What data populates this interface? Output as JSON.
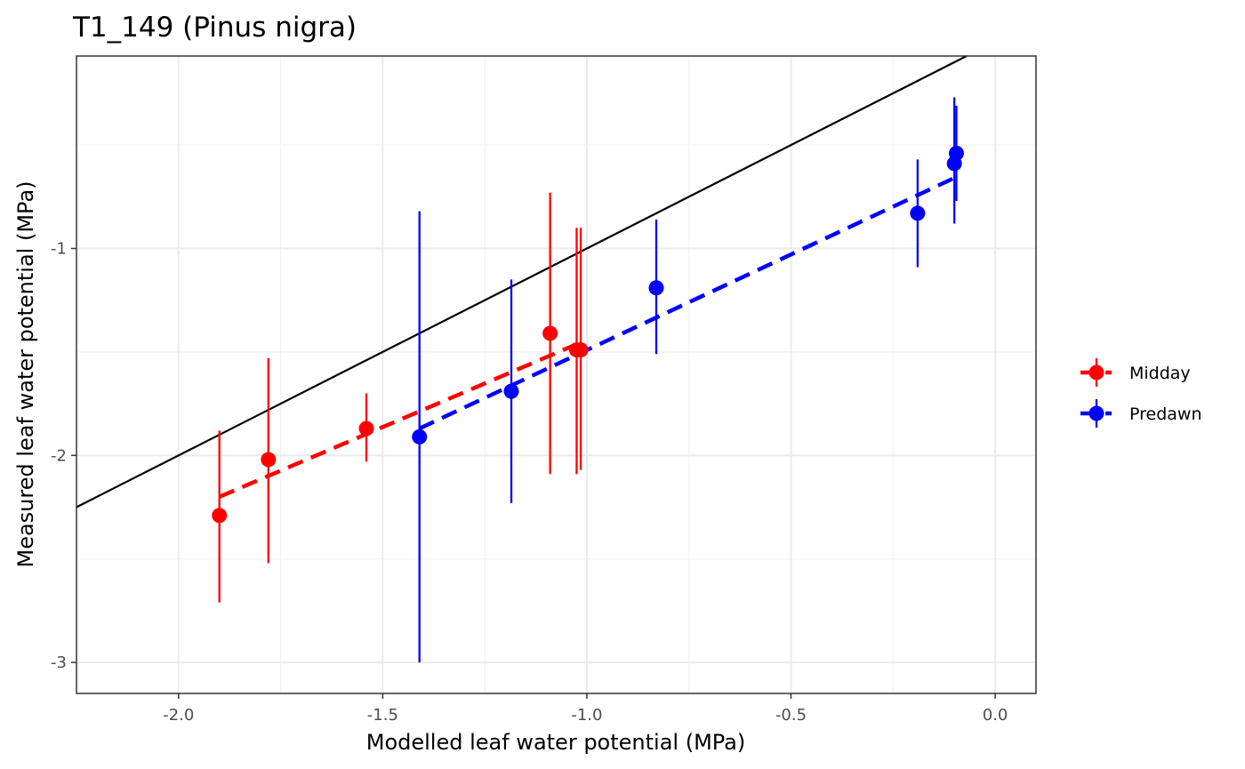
{
  "chart_data": {
    "type": "scatter",
    "title": "T1_149 (Pinus nigra)",
    "xlabel": "Modelled leaf water potential (MPa)",
    "ylabel": "Measured leaf water potential (MPa)",
    "xlim": [
      -2.25,
      0.1
    ],
    "ylim": [
      -3.15,
      -0.07
    ],
    "xticks": [
      -2.0,
      -1.5,
      -1.0,
      -0.5,
      0.0
    ],
    "xtick_labels": [
      "-2.0",
      "-1.5",
      "-1.0",
      "-0.5",
      "0.0"
    ],
    "yticks": [
      -1,
      -2,
      -3
    ],
    "ytick_labels": [
      "-1",
      "-2",
      "-3"
    ],
    "grid": true,
    "legend_position": "right",
    "identity_line": true,
    "series": [
      {
        "name": "Midday",
        "color": "#ff0000",
        "points": [
          {
            "x": -1.9,
            "y": -2.29,
            "ymin": -2.71,
            "ymax": -1.88
          },
          {
            "x": -1.78,
            "y": -2.02,
            "ymin": -2.52,
            "ymax": -1.53
          },
          {
            "x": -1.54,
            "y": -1.87,
            "ymin": -2.03,
            "ymax": -1.7
          },
          {
            "x": -1.09,
            "y": -1.41,
            "ymin": -2.09,
            "ymax": -0.73
          },
          {
            "x": -1.025,
            "y": -1.49,
            "ymin": -2.09,
            "ymax": -0.9
          },
          {
            "x": -1.015,
            "y": -1.49,
            "ymin": -2.07,
            "ymax": -0.9
          }
        ],
        "fit": {
          "x": [
            -1.9,
            -1.01
          ],
          "y": [
            -2.2,
            -1.45
          ]
        }
      },
      {
        "name": "Predawn",
        "color": "#0000ff",
        "points": [
          {
            "x": -1.41,
            "y": -1.91,
            "ymin": -3.0,
            "ymax": -0.82
          },
          {
            "x": -1.185,
            "y": -1.69,
            "ymin": -2.23,
            "ymax": -1.15
          },
          {
            "x": -0.83,
            "y": -1.19,
            "ymin": -1.51,
            "ymax": -0.86
          },
          {
            "x": -0.19,
            "y": -0.83,
            "ymin": -1.09,
            "ymax": -0.57
          },
          {
            "x": -0.1,
            "y": -0.59,
            "ymin": -0.88,
            "ymax": -0.27
          },
          {
            "x": -0.095,
            "y": -0.54,
            "ymin": -0.77,
            "ymax": -0.31
          }
        ],
        "fit": {
          "x": [
            -1.41,
            -0.09
          ],
          "y": [
            -1.87,
            -0.65
          ]
        }
      }
    ]
  }
}
